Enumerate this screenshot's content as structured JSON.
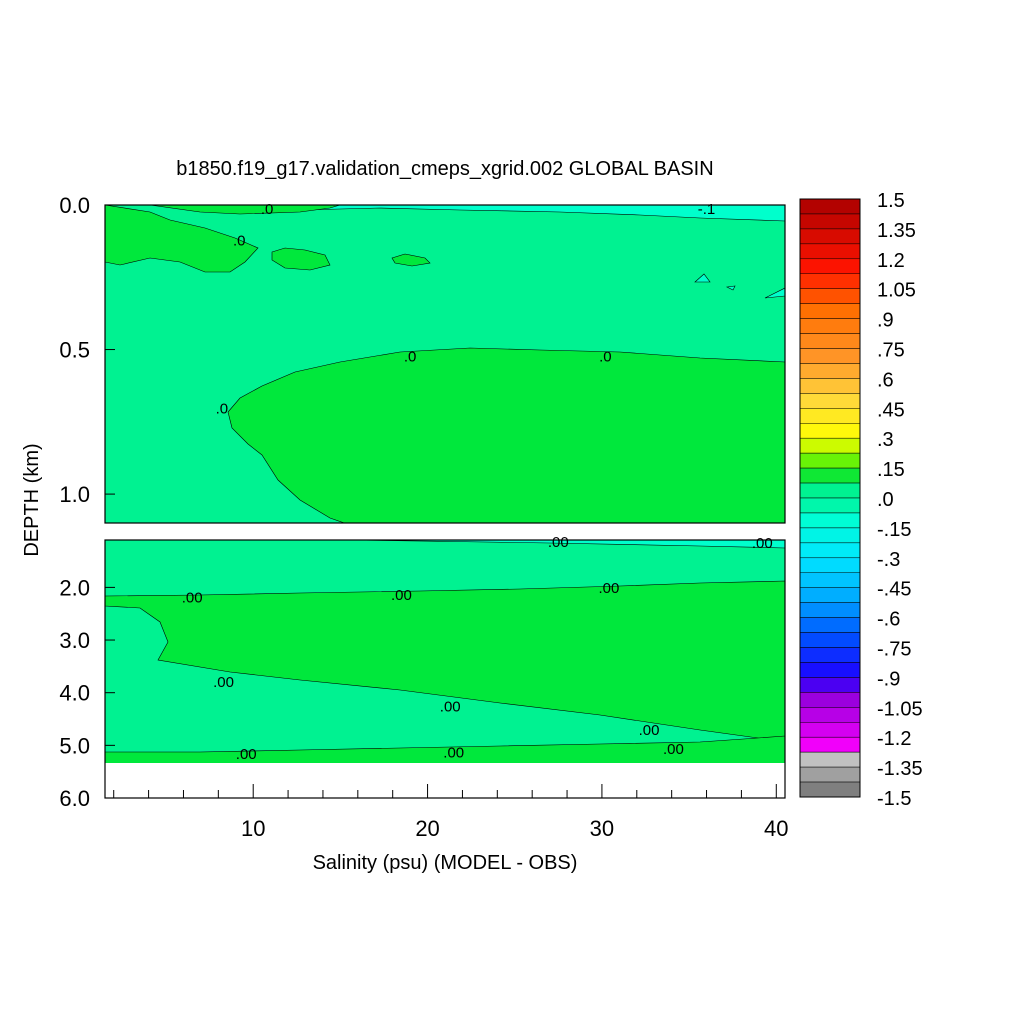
{
  "chart_data": {
    "type": "heatmap",
    "title": "b1850.f19_g17.validation_cmeps_xgrid.002 GLOBAL BASIN",
    "xlabel": "Salinity (psu) (MODEL - OBS)",
    "ylabel": "DEPTH (km)",
    "xlim": [
      1.5,
      40.5
    ],
    "x_ticks": [
      "10",
      "20",
      "30",
      "40"
    ],
    "panels": [
      {
        "name": "upper",
        "ylim": [
          0.0,
          1.1
        ],
        "y_ticks": [
          "0.0",
          "0.5",
          "1.0"
        ]
      },
      {
        "name": "lower",
        "ylim": [
          1.1,
          6.0
        ],
        "y_ticks": [
          "2.0",
          "3.0",
          "4.0",
          "5.0",
          "6.0"
        ]
      }
    ],
    "colorbar": {
      "min": -1.5,
      "max": 1.5,
      "step": 0.075,
      "labels": [
        "1.5",
        "1.35",
        "1.2",
        "1.05",
        ".9",
        ".75",
        ".6",
        ".45",
        ".3",
        ".15",
        ".0",
        "-.15",
        "-.3",
        "-.45",
        "-.6",
        "-.75",
        "-.9",
        "-1.05",
        "-1.2",
        "-1.35",
        "-1.5"
      ]
    },
    "fields": [
      {
        "panel": "upper",
        "region": "background",
        "value": -0.02,
        "color": "#00f291"
      },
      {
        "panel": "upper",
        "region": "surface band",
        "value": -0.1,
        "color": "#00ffcc"
      },
      {
        "panel": "upper",
        "region": "deep core",
        "value": 0.02,
        "color": "#00e83c"
      },
      {
        "panel": "lower",
        "region": "background",
        "value": -0.02,
        "color": "#00f291"
      },
      {
        "panel": "lower",
        "region": "mid-depth core",
        "value": 0.02,
        "color": "#00e83c"
      },
      {
        "panel": "lower",
        "region": "bottom",
        "value": 0.02,
        "color": "#00e83c"
      }
    ],
    "contour_labels": [
      {
        "panel": "upper",
        "text": ".0",
        "x": 10.8,
        "y": 0.01
      },
      {
        "panel": "upper",
        "text": ".0",
        "x": 9.2,
        "y": 0.12
      },
      {
        "panel": "upper",
        "text": "-.1",
        "x": 36,
        "y": 0.01
      },
      {
        "panel": "upper",
        "text": ".0",
        "x": 19,
        "y": 0.52
      },
      {
        "panel": "upper",
        "text": ".0",
        "x": 30.2,
        "y": 0.52
      },
      {
        "panel": "upper",
        "text": ".0",
        "x": 8.2,
        "y": 0.7
      },
      {
        "panel": "lower",
        "text": ".00",
        "x": 27.5,
        "y": 1.12
      },
      {
        "panel": "lower",
        "text": ".00",
        "x": 39.2,
        "y": 1.14
      },
      {
        "panel": "lower",
        "text": ".00",
        "x": 6.5,
        "y": 2.17
      },
      {
        "panel": "lower",
        "text": ".00",
        "x": 18.5,
        "y": 2.13
      },
      {
        "panel": "lower",
        "text": ".00",
        "x": 30.4,
        "y": 1.99
      },
      {
        "panel": "lower",
        "text": ".00",
        "x": 8.3,
        "y": 3.78
      },
      {
        "panel": "lower",
        "text": ".00",
        "x": 21.3,
        "y": 4.24
      },
      {
        "panel": "lower",
        "text": ".00",
        "x": 32.7,
        "y": 4.69
      },
      {
        "panel": "lower",
        "text": ".00",
        "x": 34.1,
        "y": 5.05
      },
      {
        "panel": "lower",
        "text": ".00",
        "x": 9.6,
        "y": 5.15
      },
      {
        "panel": "lower",
        "text": ".00",
        "x": 21.5,
        "y": 5.12
      }
    ],
    "colors": {
      "band_mid": "#00f291",
      "band_pos": "#00e83c",
      "band_neg": "#00ffcc",
      "missing": "#ffffff"
    }
  }
}
